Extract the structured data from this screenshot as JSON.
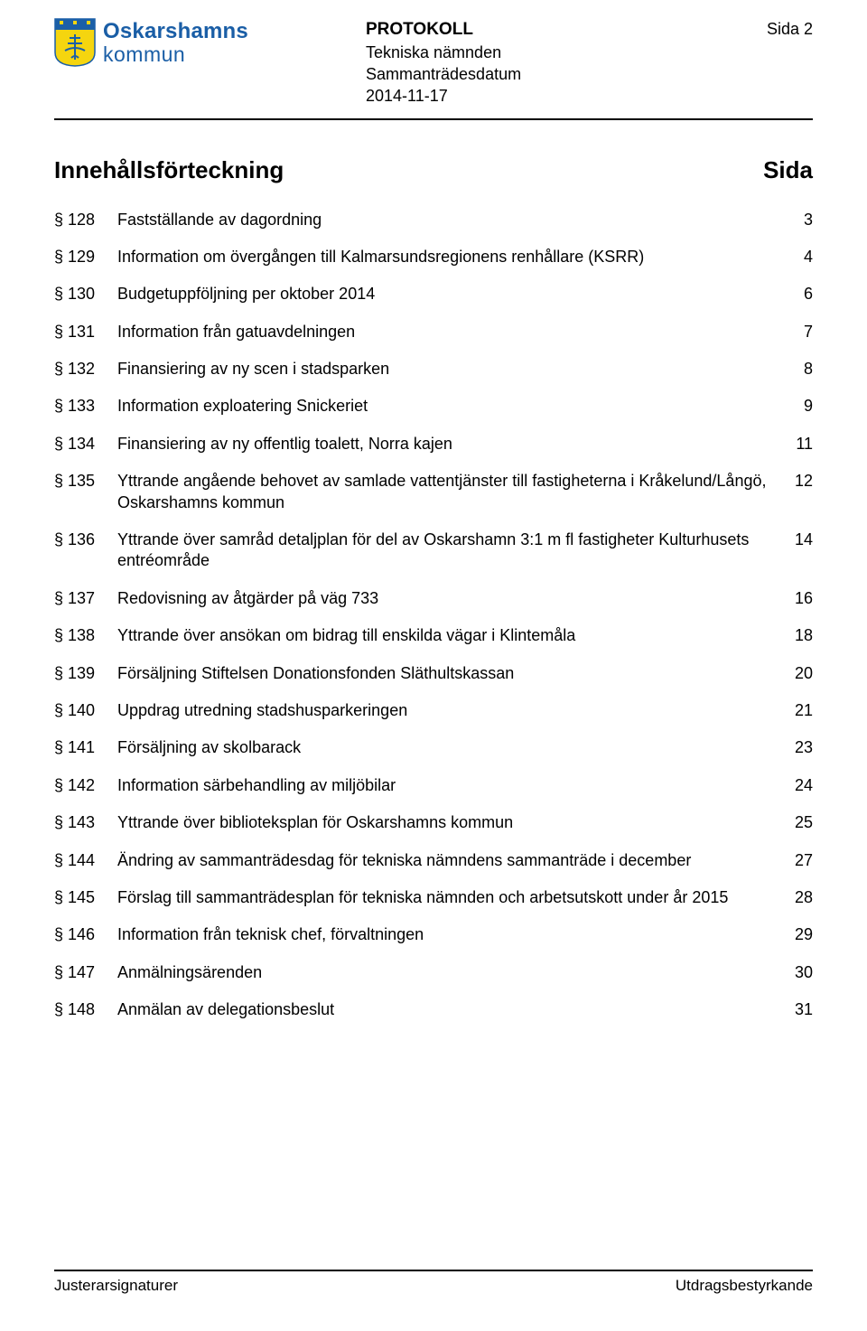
{
  "header": {
    "logo": {
      "top": "Oskarshamns",
      "bottom": "kommun"
    },
    "protocol_label": "PROTOKOLL",
    "committee": "Tekniska nämnden",
    "meeting_date_label": "Sammanträdesdatum",
    "meeting_date": "2014-11-17",
    "page_label": "Sida 2"
  },
  "colors": {
    "logo_blue": "#1a5ea6",
    "crest_yellow": "#f5d50f",
    "crest_blue": "#1b5fa7",
    "text": "#000000"
  },
  "content": {
    "title": "Innehållsförteckning",
    "sida_label": "Sida"
  },
  "toc": [
    {
      "sec": "§ 128",
      "title": "Fastställande av dagordning",
      "page": "3"
    },
    {
      "sec": "§ 129",
      "title": "Information om övergången till Kalmarsundsregionens renhållare (KSRR)",
      "page": "4"
    },
    {
      "sec": "§ 130",
      "title": "Budgetuppföljning per oktober 2014",
      "page": "6"
    },
    {
      "sec": "§ 131",
      "title": "Information från gatuavdelningen",
      "page": "7"
    },
    {
      "sec": "§ 132",
      "title": "Finansiering av ny scen i stadsparken",
      "page": "8"
    },
    {
      "sec": "§ 133",
      "title": "Information exploatering Snickeriet",
      "page": "9"
    },
    {
      "sec": "§ 134",
      "title": "Finansiering av ny offentlig toalett, Norra kajen",
      "page": "11"
    },
    {
      "sec": "§ 135",
      "title": "Yttrande angående behovet av samlade vattentjänster till fastigheterna i Kråkelund/Långö, Oskarshamns kommun",
      "page": "12"
    },
    {
      "sec": "§ 136",
      "title": "Yttrande över samråd detaljplan för del av Oskarshamn 3:1 m fl fastigheter Kulturhusets entréområde",
      "page": "14"
    },
    {
      "sec": "§ 137",
      "title": "Redovisning av åtgärder på väg 733",
      "page": "16"
    },
    {
      "sec": "§ 138",
      "title": "Yttrande över ansökan om bidrag till enskilda vägar i Klintemåla",
      "page": "18"
    },
    {
      "sec": "§ 139",
      "title": "Försäljning Stiftelsen Donationsfonden Släthultskassan",
      "page": "20"
    },
    {
      "sec": "§ 140",
      "title": "Uppdrag utredning stadshusparkeringen",
      "page": "21"
    },
    {
      "sec": "§ 141",
      "title": "Försäljning av skolbarack",
      "page": "23"
    },
    {
      "sec": "§ 142",
      "title": "Information särbehandling av miljöbilar",
      "page": "24"
    },
    {
      "sec": "§ 143",
      "title": "Yttrande över biblioteksplan för Oskarshamns kommun",
      "page": "25"
    },
    {
      "sec": "§ 144",
      "title": "Ändring av sammanträdesdag för tekniska nämndens sammanträde i december",
      "page": "27"
    },
    {
      "sec": "§ 145",
      "title": "Förslag till sammanträdesplan för tekniska nämnden och arbetsutskott under år 2015",
      "page": "28"
    },
    {
      "sec": "§ 146",
      "title": "Information från teknisk chef, förvaltningen",
      "page": "29"
    },
    {
      "sec": "§ 147",
      "title": "Anmälningsärenden",
      "page": "30"
    },
    {
      "sec": "§ 148",
      "title": "Anmälan av delegationsbeslut",
      "page": "31"
    }
  ],
  "footer": {
    "left": "Justerarsignaturer",
    "right": "Utdragsbestyrkande"
  }
}
